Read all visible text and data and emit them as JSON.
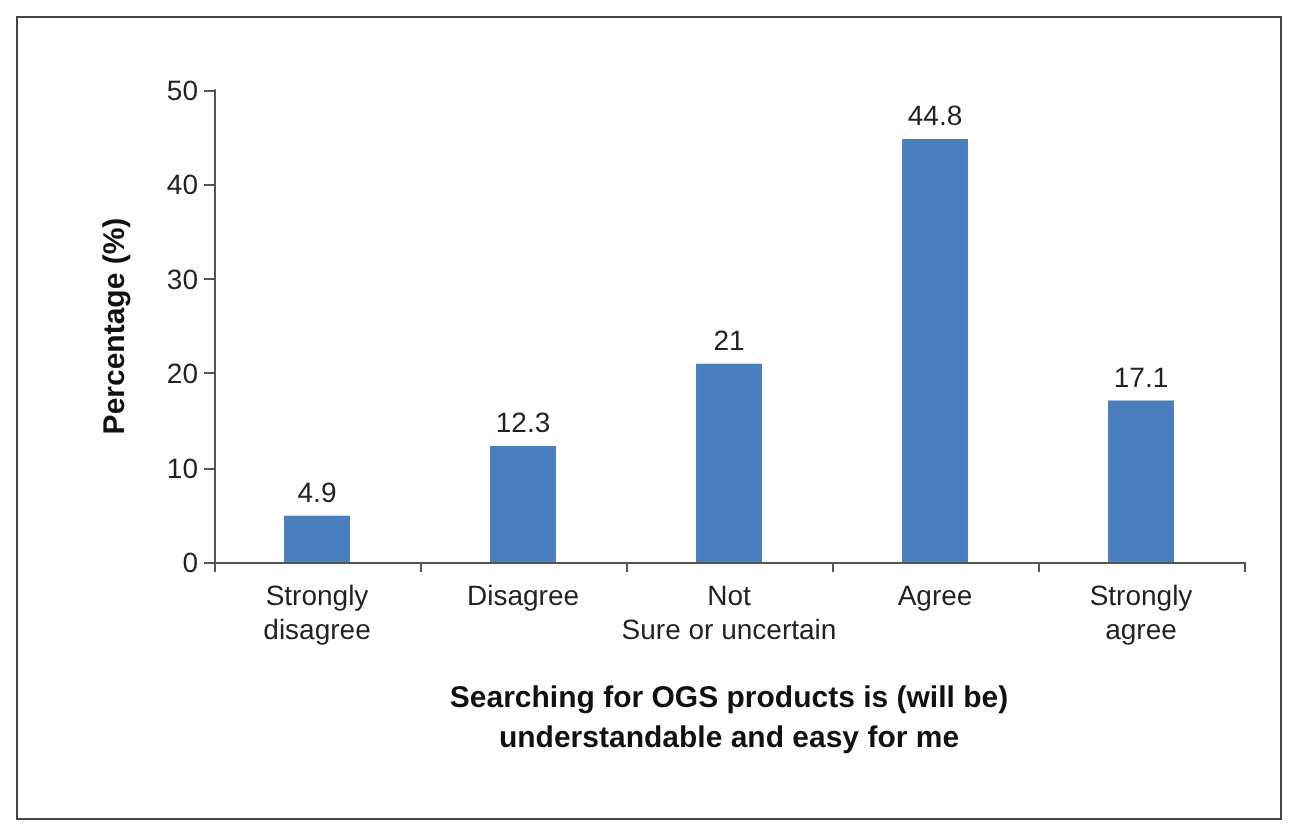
{
  "chart_data": {
    "type": "bar",
    "xlabel": "Searching for OGS products is (will be)\nunderstandable and easy for me",
    "ylabel": "Percentage (%)",
    "categories": [
      "Strongly\ndisagree",
      "Disagree",
      "Not\nSure or uncertain",
      "Agree",
      "Strongly\nagree"
    ],
    "values": [
      4.9,
      12.3,
      21,
      44.8,
      17.1
    ],
    "color": "#4a7ebf",
    "ylim": [
      0,
      50
    ],
    "yticks": [
      0,
      10,
      20,
      30,
      40,
      50
    ],
    "grid": false,
    "data_labels": true
  }
}
